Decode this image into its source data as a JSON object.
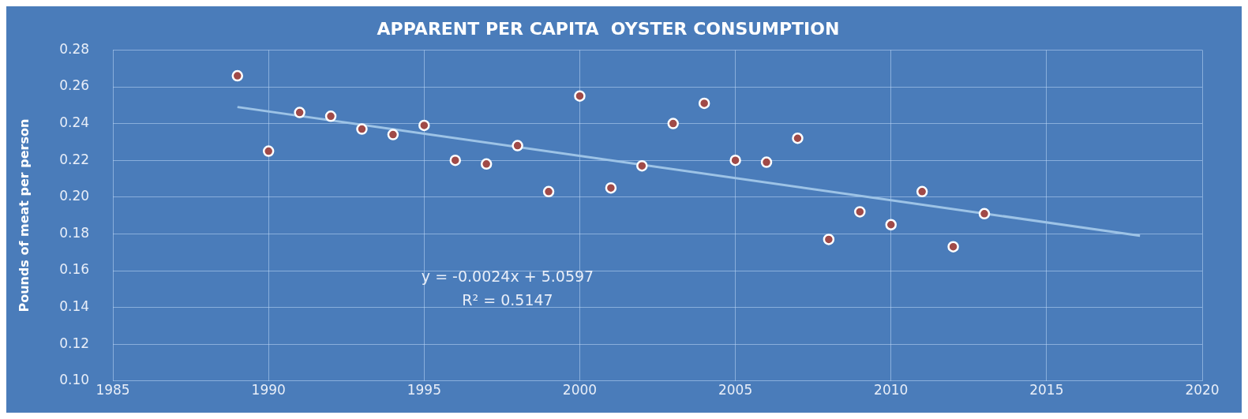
{
  "chart_data": {
    "type": "scatter",
    "title": "APPARENT PER CAPITA  OYSTER CONSUMPTION",
    "ylabel": "Pounds of meat per person",
    "x": [
      1989,
      1990,
      1991,
      1992,
      1993,
      1994,
      1995,
      1996,
      1997,
      1998,
      1999,
      2000,
      2001,
      2002,
      2003,
      2004,
      2005,
      2006,
      2007,
      2008,
      2009,
      2010,
      2011,
      2012,
      2013
    ],
    "series": [
      {
        "color": "#a04a48",
        "values": [
          0.266,
          0.225,
          0.246,
          0.244,
          0.237,
          0.234,
          0.239,
          0.22,
          0.218,
          0.228,
          0.203,
          0.255,
          0.205,
          0.217,
          0.24,
          0.251,
          0.22,
          0.219,
          0.232,
          0.177,
          0.192,
          0.185,
          0.203,
          0.173,
          0.191
        ]
      },
      {
        "type": "line",
        "marker": "none",
        "color": "#9dc3e6",
        "x": [
          1989,
          2018
        ],
        "values": [
          0.249,
          0.179
        ]
      }
    ],
    "xlim": [
      1985,
      2020
    ],
    "xticks": [
      1985,
      1990,
      1995,
      2000,
      2005,
      2010,
      2015,
      2020
    ],
    "ylim": [
      0.1,
      0.28
    ],
    "yticks": [
      {
        "value": 0.1,
        "label": "0.10"
      },
      {
        "value": 0.12,
        "label": "0.12"
      },
      {
        "value": 0.14,
        "label": "0.14"
      },
      {
        "value": 0.16,
        "label": "0.16"
      },
      {
        "value": 0.18,
        "label": "0.18"
      },
      {
        "value": 0.2,
        "label": "0.20"
      },
      {
        "value": 0.22,
        "label": "0.22"
      },
      {
        "value": 0.24,
        "label": "0.24"
      },
      {
        "value": 0.26,
        "label": "0.26"
      },
      {
        "value": 0.28,
        "label": "0.28"
      }
    ],
    "annotations": [
      "y = -0.0024x + 5.0597",
      "R² = 0.5147"
    ],
    "grid": true,
    "legend": false,
    "marker": "circle",
    "line_style": "solid"
  }
}
